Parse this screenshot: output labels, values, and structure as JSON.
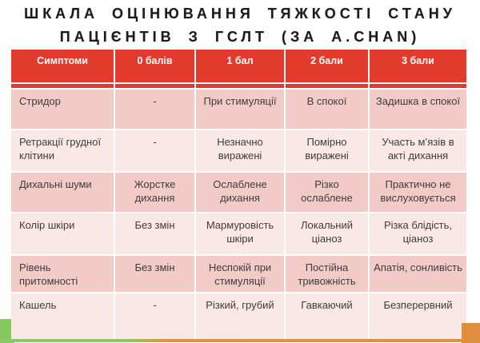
{
  "slide": {
    "title_line1": "ШКАЛА ОЦІНЮВАННЯ ТЯЖКОСТІ СТАНУ",
    "title_line2": "ПАЦІЄНТІВ З ГСЛТ (ЗА A.CHAN)"
  },
  "table": {
    "headers": [
      "Симптоми",
      "0 балів",
      "1 бал",
      "2 бали",
      "3 бали"
    ],
    "rows": [
      {
        "cells": [
          "Стридор",
          "-",
          "При стимуляції",
          "В спокої",
          "Задишка в спокої"
        ]
      },
      {
        "cells": [
          "Ретракції грудної клітини",
          "-",
          "Незначно виражені",
          "Помірно виражені",
          "Участь  м’язів в акті дихання"
        ]
      },
      {
        "cells": [
          "Дихальні шуми",
          "Жорстке дихання",
          "Ослаблене дихання",
          "Різко ослаблене",
          "Практично не вислуховується"
        ]
      },
      {
        "cells": [
          "Колір шкіри",
          "Без змін",
          "Мармуровість шкіри",
          "Локальний ціаноз",
          "Різка блідість, ціаноз"
        ]
      },
      {
        "cells": [
          "Рівень притомності",
          "Без змін",
          "Неспокій при стимуляції",
          "Постійна тривожність",
          "Апатія, сонливість"
        ]
      },
      {
        "cells": [
          "Кашель",
          "-",
          "Різкий, грубий",
          "Гавкаючий",
          "Безперервний"
        ]
      }
    ]
  },
  "colors": {
    "header_red": "#e23b2e",
    "row_pink_dark": "#f2cbc7",
    "row_pink_light": "#f9e8e5",
    "deco_green": "#84c95c",
    "deco_orange": "#dd8e3e",
    "strip_green": "#8cc964",
    "strip_orange": "#d9973f",
    "title_text": "#1b1b1b",
    "cell_text": "#3d3d3d"
  }
}
